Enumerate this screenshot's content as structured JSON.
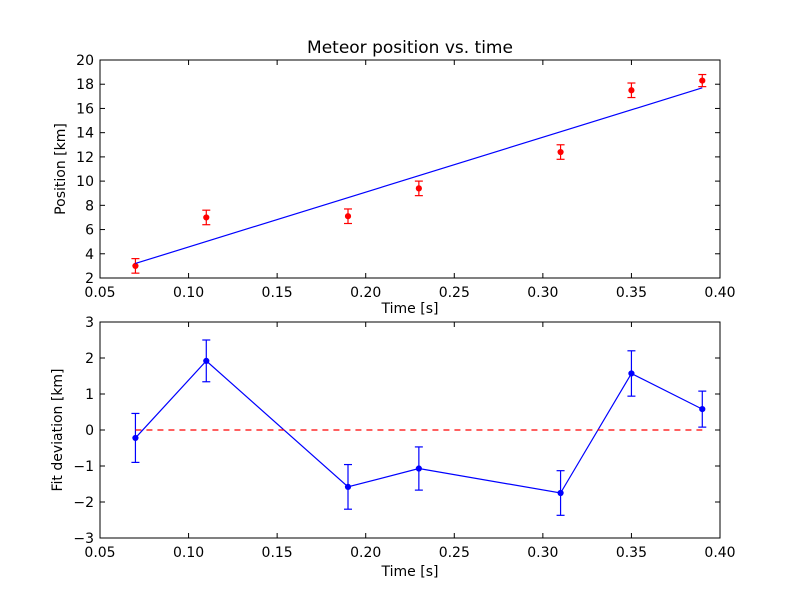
{
  "chart_data": [
    {
      "type": "scatter",
      "title": "Meteor position vs. time",
      "xlabel": "Time [s]",
      "ylabel": "Position [km]",
      "xlim": [
        0.05,
        0.4
      ],
      "ylim": [
        2,
        20
      ],
      "xticks": [
        "0.05",
        "0.10",
        "0.15",
        "0.20",
        "0.25",
        "0.30",
        "0.35",
        "0.40"
      ],
      "yticks": [
        "2",
        "4",
        "6",
        "8",
        "10",
        "12",
        "14",
        "16",
        "18",
        "20"
      ],
      "grid": false,
      "series": [
        {
          "kind": "errorbar-points",
          "color": "#ff0000",
          "x": [
            0.07,
            0.11,
            0.19,
            0.23,
            0.31,
            0.35,
            0.39
          ],
          "y": [
            3.0,
            7.0,
            7.1,
            9.4,
            12.4,
            17.5,
            18.3
          ],
          "yerr": [
            0.6,
            0.6,
            0.6,
            0.6,
            0.6,
            0.6,
            0.5
          ]
        },
        {
          "kind": "fit-line",
          "color": "#0000ff",
          "x": [
            0.07,
            0.39
          ],
          "y": [
            3.2,
            17.7
          ]
        }
      ]
    },
    {
      "type": "line",
      "title": "",
      "xlabel": "Time [s]",
      "ylabel": "Fit deviation [km]",
      "xlim": [
        0.05,
        0.4
      ],
      "ylim": [
        -3,
        3
      ],
      "xticks": [
        "0.05",
        "0.10",
        "0.15",
        "0.20",
        "0.25",
        "0.30",
        "0.35",
        "0.40"
      ],
      "yticks": [
        "−3",
        "−2",
        "−1",
        "0",
        "1",
        "2",
        "3"
      ],
      "grid": false,
      "series": [
        {
          "kind": "errorbar-line",
          "color": "#0000ff",
          "x": [
            0.07,
            0.11,
            0.19,
            0.23,
            0.31,
            0.35,
            0.39
          ],
          "y": [
            -0.22,
            1.92,
            -1.58,
            -1.07,
            -1.75,
            1.57,
            0.58
          ],
          "yerr": [
            0.68,
            0.58,
            0.62,
            0.6,
            0.62,
            0.63,
            0.5
          ]
        },
        {
          "kind": "zero-line",
          "color": "#ff0000",
          "style": "dashed",
          "x": [
            0.07,
            0.39
          ],
          "y": [
            0,
            0
          ]
        }
      ]
    }
  ]
}
